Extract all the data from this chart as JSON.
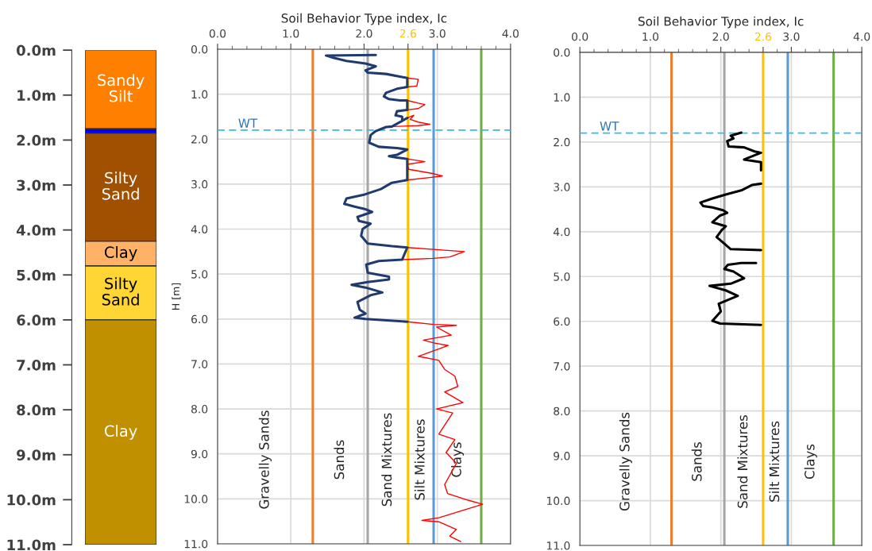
{
  "chart_data": [
    {
      "type": "bar",
      "stacked": true,
      "categories": [
        null
      ],
      "tick_labels": "y",
      "ylim": [
        11,
        0
      ],
      "yticks": [
        {
          "value": 0,
          "label": "0.0m"
        },
        {
          "value": 1,
          "label": "1.0m"
        },
        {
          "value": 2,
          "label": "2.0m"
        },
        {
          "value": 3,
          "label": "3.0m"
        },
        {
          "value": 4,
          "label": "4.0m"
        },
        {
          "value": 5,
          "label": "5.0m"
        },
        {
          "value": 6,
          "label": "6.0m"
        },
        {
          "value": 7,
          "label": "7.0m"
        },
        {
          "value": 8,
          "label": "8.0m"
        },
        {
          "value": 9,
          "label": "9.0m"
        },
        {
          "value": 10,
          "label": "10.0m"
        },
        {
          "value": 11,
          "label": "11.0m"
        }
      ],
      "series": [
        {
          "name": "Sandy Silt",
          "color": "#ff8000",
          "values": [
            1.75
          ]
        },
        {
          "color": "#0000ff",
          "values": [
            0.1
          ]
        },
        {
          "name": "Silty Sand",
          "color": "#a05000",
          "values": [
            2.4
          ]
        },
        {
          "name": "Clay",
          "color": "#ffb266",
          "values": [
            0.55
          ]
        },
        {
          "name": "Silty Sand",
          "color": "#ffd633",
          "values": [
            1.2
          ]
        },
        {
          "name": "Clay",
          "color": "#c09000",
          "values": [
            5.0
          ]
        }
      ]
    },
    {
      "type": "line",
      "xlabel": "Soil Behavior Type index, Ic",
      "ylabel": "H [m]",
      "grid": true,
      "xlim": [
        0,
        4
      ],
      "ylim": [
        11,
        0
      ],
      "xticks": [
        {
          "value": 0,
          "label": "0.0"
        },
        {
          "value": 1,
          "label": "1.0"
        },
        {
          "value": 2,
          "label": "2.0"
        },
        2.6,
        {
          "value": 3,
          "label": "3.0"
        },
        {
          "value": 4,
          "label": "4.0"
        }
      ],
      "yticks": [
        {
          "value": 0,
          "label": "0.0"
        },
        {
          "value": 1,
          "label": "1.0"
        },
        {
          "value": 2,
          "label": "2.0"
        },
        {
          "value": 3,
          "label": "3.0"
        },
        {
          "value": 4,
          "label": "4.0"
        },
        {
          "value": 5,
          "label": "5.0"
        },
        {
          "value": 6,
          "label": "6.0"
        },
        {
          "value": 7,
          "label": "7.0"
        },
        {
          "value": 8,
          "label": "8.0"
        },
        {
          "value": 9,
          "label": "9.0"
        },
        {
          "value": 10,
          "label": "10.0"
        },
        {
          "value": 11,
          "label": "11.0"
        }
      ],
      "ref_lines": [
        {
          "axis": "x",
          "value": 1.3,
          "color": "#ed7d31"
        },
        {
          "axis": "x",
          "value": 2.05,
          "color": "#a6a6a6"
        },
        {
          "axis": "x",
          "value": 2.6,
          "color": "#ffc000"
        },
        {
          "axis": "x",
          "value": 2.95,
          "color": "#5b9bd5"
        },
        {
          "axis": "x",
          "value": 3.6,
          "color": "#70ad47"
        },
        {
          "axis": "y",
          "value": 1.8,
          "label": "WT",
          "color": "#33bbee",
          "line_style": "dashed"
        }
      ],
      "annotations": [
        "Gravelly Sands",
        "Sands",
        "Sand Mixtures",
        "Silt Mixtures",
        "Clays"
      ],
      "series": [
        {
          "color": "#ff0000",
          "x": [
            2.59,
            2.74,
            2.72,
            2.59,
            null,
            2.59,
            2.74,
            2.83,
            2.74,
            2.59,
            null,
            2.59,
            2.68,
            2.63,
            2.74,
            2.9,
            2.74,
            2.38,
            null,
            2.59,
            2.83,
            2.59,
            2.61,
            2.92,
            3.07,
            2.92,
            2.59,
            null,
            2.59,
            3.1,
            3.37,
            3.17,
            2.95,
            2.52,
            null,
            2.59,
            2.95,
            3.26,
            2.99,
            3.19,
            2.81,
            2.95,
            3.15,
            2.74,
            3.02,
            3.1,
            3.24,
            3.28,
            3.1,
            3.35,
            2.99,
            3.21,
            3.02,
            3.24,
            3.12,
            3.26,
            3.1,
            3.14,
            3.42,
            3.62,
            3.32,
            3.02,
            2.79,
            3.02,
            3.26,
            3.17,
            3.32
          ],
          "values": [
            0.64,
            0.67,
            0.82,
            0.84,
            null,
            1.14,
            1.2,
            1.23,
            1.32,
            1.35,
            null,
            1.53,
            1.47,
            1.56,
            1.62,
            1.67,
            1.7,
            1.72,
            null,
            2.44,
            2.5,
            2.56,
            2.67,
            2.76,
            2.82,
            2.85,
            2.91,
            null,
            4.41,
            4.47,
            4.5,
            4.62,
            4.65,
            4.68,
            null,
            6.06,
            6.12,
            6.14,
            6.18,
            6.36,
            6.47,
            6.53,
            6.59,
            6.83,
            6.92,
            7.12,
            7.27,
            7.5,
            7.62,
            7.86,
            8.0,
            8.09,
            8.56,
            8.68,
            8.97,
            9.21,
            9.68,
            9.88,
            10.03,
            10.12,
            10.27,
            10.42,
            10.48,
            10.51,
            10.68,
            10.83,
            10.95
          ]
        },
        {
          "color": "#1f3a6e",
          "x": [
            2.16,
            1.48,
            1.58,
            1.76,
            2.02,
            2.16,
            2.02,
            2.05,
            2.3,
            2.59,
            2.59,
            2.45,
            2.3,
            2.27,
            2.34,
            2.49,
            2.59,
            2.59,
            2.45,
            2.43,
            2.52,
            2.52,
            2.59,
            2.38,
            2.3,
            2.16,
            2.09,
            2.07,
            2.2,
            2.45,
            2.59,
            2.45,
            2.34,
            2.45,
            2.59,
            2.59,
            2.38,
            2.23,
            2.01,
            1.76,
            1.73,
            1.87,
            2.02,
            2.11,
            1.91,
            1.93,
            2.09,
            1.98,
            1.96,
            2.05,
            2.38,
            2.59,
            2.52,
            2.2,
            2.03,
            2.05,
            2.34,
            2.34,
            2.05,
            1.83,
            2.02,
            2.25,
            2.09,
            1.91,
            1.94,
            2.02,
            1.87,
            2.02,
            2.59
          ],
          "values": [
            0.13,
            0.14,
            0.19,
            0.26,
            0.32,
            0.38,
            0.47,
            0.52,
            0.55,
            0.64,
            0.84,
            0.88,
            0.97,
            1.05,
            1.11,
            1.14,
            1.14,
            1.35,
            1.38,
            1.47,
            1.5,
            1.59,
            1.53,
            1.72,
            1.73,
            1.82,
            1.91,
            2.08,
            2.17,
            2.2,
            2.23,
            2.35,
            2.38,
            2.41,
            2.44,
            2.91,
            2.97,
            3.11,
            3.23,
            3.32,
            3.44,
            3.5,
            3.56,
            3.62,
            3.73,
            3.82,
            3.88,
            4.0,
            4.15,
            4.32,
            4.38,
            4.41,
            4.68,
            4.71,
            4.79,
            4.97,
            5.06,
            5.12,
            5.18,
            5.24,
            5.3,
            5.41,
            5.47,
            5.62,
            5.79,
            5.88,
            5.97,
            6.0,
            6.06
          ]
        }
      ]
    },
    {
      "type": "line",
      "xlabel": "Soil Behavior Type index, Ic",
      "grid": true,
      "xlim": [
        0,
        4
      ],
      "ylim": [
        11,
        0
      ],
      "xticks": [
        {
          "value": 0,
          "label": "0.0"
        },
        {
          "value": 1,
          "label": "1.0"
        },
        {
          "value": 2,
          "label": "2.0"
        },
        2.6,
        {
          "value": 3,
          "label": "3.0"
        },
        {
          "value": 4,
          "label": "4.0"
        }
      ],
      "yticks": [
        {
          "value": 0,
          "label": "0.0"
        },
        {
          "value": 1,
          "label": "1.0"
        },
        {
          "value": 2,
          "label": "2.0"
        },
        {
          "value": 3,
          "label": "3.0"
        },
        {
          "value": 4,
          "label": "4.0"
        },
        {
          "value": 5,
          "label": "5.0"
        },
        {
          "value": 6,
          "label": "6.0"
        },
        {
          "value": 7,
          "label": "7.0"
        },
        {
          "value": 8,
          "label": "8.0"
        },
        {
          "value": 9,
          "label": "9.0"
        },
        {
          "value": 10,
          "label": "10.0"
        },
        {
          "value": 11,
          "label": "11.0"
        }
      ],
      "ref_lines": [
        {
          "axis": "x",
          "value": 1.3,
          "color": "#ed7d31"
        },
        {
          "axis": "x",
          "value": 2.05,
          "color": "#a6a6a6"
        },
        {
          "axis": "x",
          "value": 2.6,
          "color": "#ffc000"
        },
        {
          "axis": "x",
          "value": 2.95,
          "color": "#5b9bd5"
        },
        {
          "axis": "x",
          "value": 3.6,
          "color": "#70ad47"
        },
        {
          "axis": "y",
          "value": 1.8,
          "label": "WT",
          "color": "#33bbee",
          "line_style": "dashed"
        }
      ],
      "annotations": [
        "Gravelly Sands",
        "Sands",
        "Sand Mixtures",
        "Silt Mixtures",
        "Clays"
      ],
      "series": [
        {
          "color": "#000000",
          "x": [
            2.29,
            2.14,
            2.18,
            2.09,
            2.11,
            2.33,
            2.48,
            2.57,
            2.33,
            2.57,
            2.57,
            null,
            2.57,
            2.44,
            2.29,
            2.07,
            1.88,
            1.71,
            1.75,
            1.88,
            2.03,
            2.09,
            1.99,
            1.88,
            2.07,
            2.01,
            1.94,
            2.03,
            2.14,
            2.57,
            null,
            2.5,
            2.29,
            2.1,
            2.05,
            2.18,
            2.33,
            2.14,
            1.84,
            2.07,
            2.24,
            1.97,
            2.0,
            1.88,
            1.99,
            2.57
          ],
          "values": [
            1.79,
            1.86,
            1.92,
            1.98,
            2.1,
            2.12,
            2.21,
            2.24,
            2.39,
            2.45,
            2.63,
            null,
            2.93,
            2.96,
            3.08,
            3.17,
            3.26,
            3.35,
            3.43,
            3.46,
            3.52,
            3.58,
            3.64,
            3.79,
            3.88,
            3.97,
            4.12,
            4.24,
            4.39,
            4.41,
            null,
            4.7,
            4.7,
            4.74,
            4.83,
            4.89,
            5.04,
            5.16,
            5.21,
            5.31,
            5.43,
            5.61,
            5.78,
            5.99,
            6.05,
            6.08
          ]
        }
      ]
    }
  ]
}
